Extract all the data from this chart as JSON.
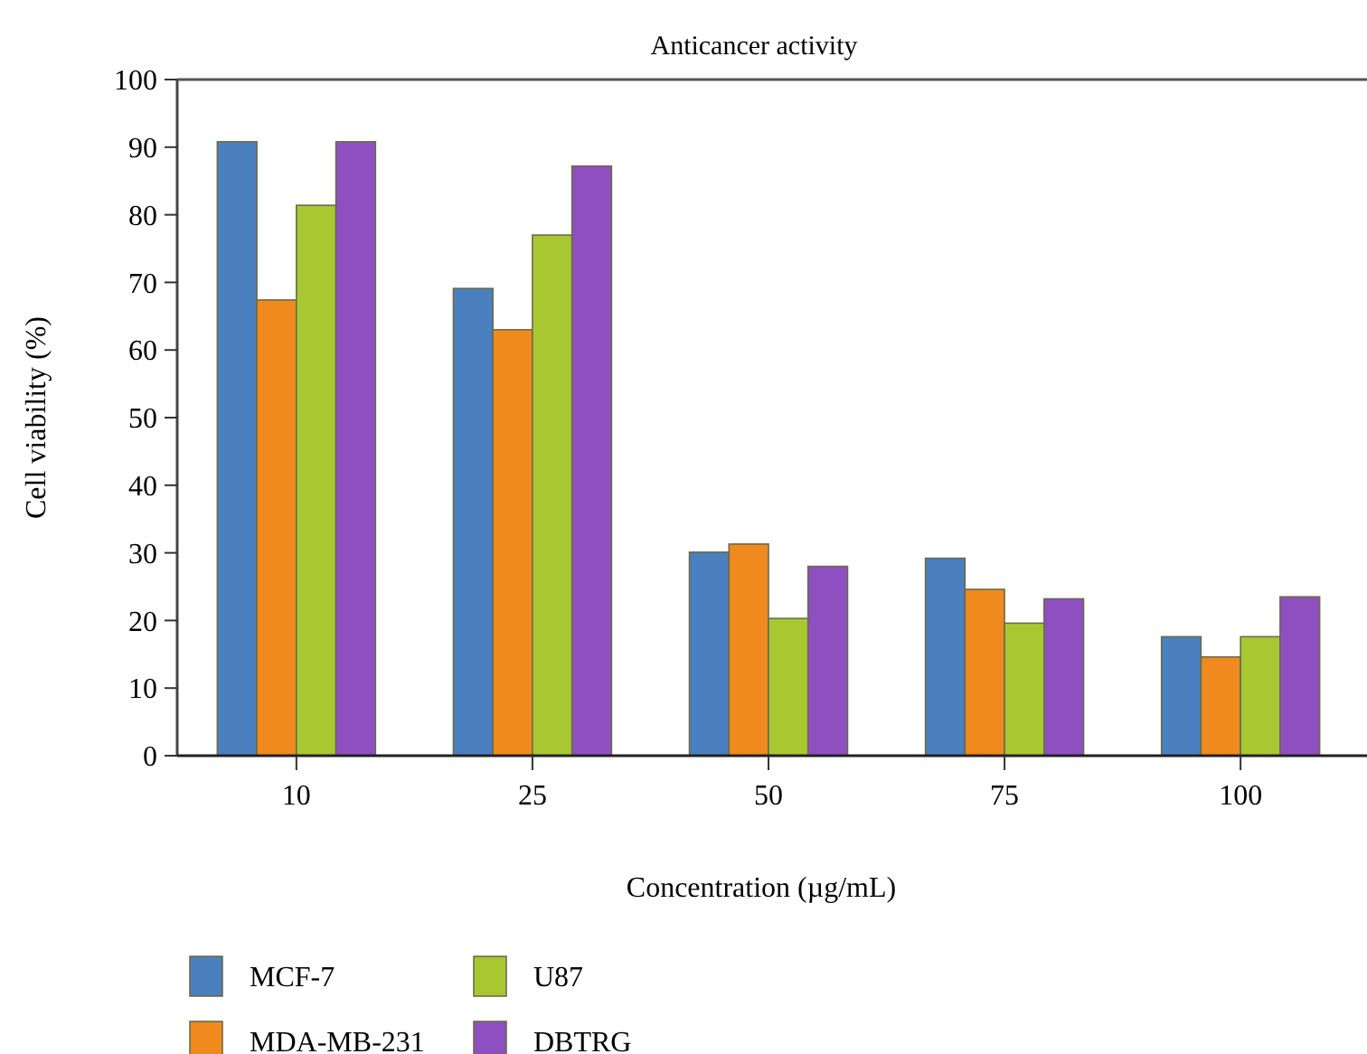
{
  "chart_data": {
    "type": "bar",
    "title": "Anticancer activity",
    "xlabel": "Concentration (µg/mL)",
    "ylabel": "Cell viability (%)",
    "categories": [
      "10",
      "25",
      "50",
      "75",
      "100"
    ],
    "series": [
      {
        "name": "MCF-7",
        "color": "#4a7fc0",
        "values": [
          90.8,
          69.1,
          30.1,
          29.2,
          17.6
        ]
      },
      {
        "name": "MDA-MB-231",
        "color": "#f08a1e",
        "values": [
          67.4,
          63.0,
          31.3,
          24.6,
          14.6
        ]
      },
      {
        "name": "U87",
        "color": "#a8c832",
        "values": [
          81.4,
          77.0,
          20.3,
          19.6,
          17.6
        ]
      },
      {
        "name": "DBTRG",
        "color": "#8e4fc0",
        "values": [
          90.8,
          87.2,
          28.0,
          23.2,
          23.5
        ]
      }
    ],
    "ylim": [
      0,
      100
    ],
    "yticks": [
      0,
      10,
      20,
      30,
      40,
      50,
      60,
      70,
      80,
      90,
      100
    ],
    "grid": false,
    "legend": "bottom"
  }
}
